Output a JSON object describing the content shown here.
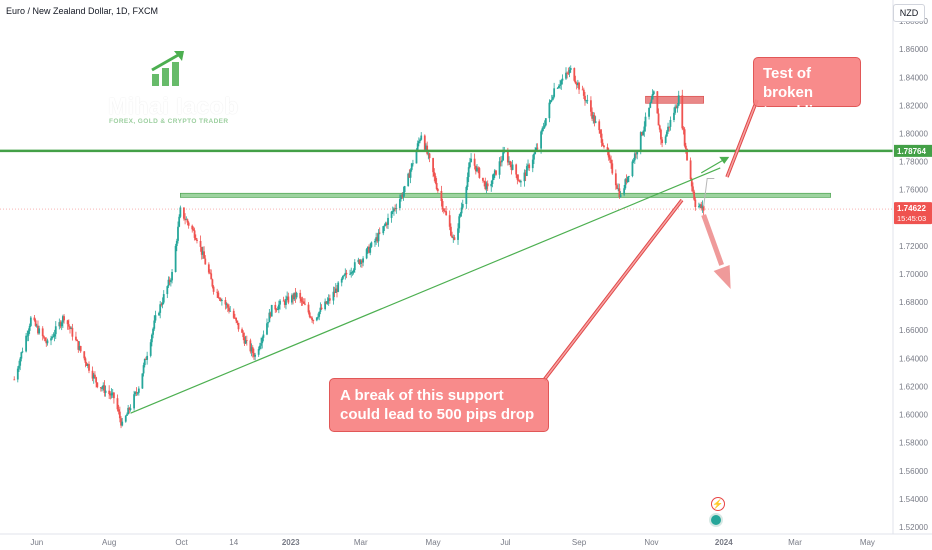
{
  "symbol_title": "Euro / New Zealand Dollar, 1D, FXCM",
  "currency": "NZD",
  "brand": {
    "name": "Mihai Iacob",
    "tagline": "FOREX, GOLD & CRYPTO TRADER"
  },
  "annotations": {
    "top_note": [
      "Test of broken",
      "trend line"
    ],
    "bottom_note": [
      "A break of this support",
      "could lead to 500 pips drop"
    ]
  },
  "icons": {
    "flash": "lightning-icon",
    "event": "event-dot-icon"
  },
  "colors": {
    "bull": "#26a69a",
    "bear": "#ef5350",
    "trend_line": "#4caf50",
    "resistance_zone": "#4caf50",
    "sell_zone": "#e57373",
    "price_label": "#ef5350",
    "level_label": "#43a047"
  },
  "chart_data": {
    "type": "candlestick",
    "title": "Euro / New Zealand Dollar, 1D, FXCM",
    "ylim": [
      1.515,
      1.895
    ],
    "y_ticks": [
      "1.88000",
      "1.86000",
      "1.84000",
      "1.82000",
      "1.80000",
      "1.78000",
      "1.76000",
      "1.74000",
      "1.72000",
      "1.70000",
      "1.68000",
      "1.66000",
      "1.64000",
      "1.62000",
      "1.60000",
      "1.58000",
      "1.56000",
      "1.54000",
      "1.52000"
    ],
    "x_ticks": [
      "Jun",
      "Aug",
      "Oct",
      "14",
      "2023",
      "Mar",
      "May",
      "Jul",
      "Sep",
      "Nov",
      "2024",
      "Mar",
      "May"
    ],
    "grid": false,
    "price_path": [
      [
        "2022-05-13",
        1.625
      ],
      [
        "2022-05-27",
        1.668
      ],
      [
        "2022-06-10",
        1.65
      ],
      [
        "2022-06-24",
        1.67
      ],
      [
        "2022-07-08",
        1.645
      ],
      [
        "2022-07-22",
        1.622
      ],
      [
        "2022-08-05",
        1.612
      ],
      [
        "2022-08-12",
        1.592
      ],
      [
        "2022-08-26",
        1.62
      ],
      [
        "2022-09-09",
        1.668
      ],
      [
        "2022-09-23",
        1.7
      ],
      [
        "2022-09-30",
        1.745
      ],
      [
        "2022-10-14",
        1.726
      ],
      [
        "2022-10-28",
        1.69
      ],
      [
        "2022-11-11",
        1.674
      ],
      [
        "2022-11-25",
        1.65
      ],
      [
        "2022-12-02",
        1.642
      ],
      [
        "2022-12-16",
        1.675
      ],
      [
        "2023-01-06",
        1.685
      ],
      [
        "2023-01-20",
        1.668
      ],
      [
        "2023-02-03",
        1.682
      ],
      [
        "2023-02-17",
        1.7
      ],
      [
        "2023-03-03",
        1.712
      ],
      [
        "2023-03-17",
        1.728
      ],
      [
        "2023-04-07",
        1.76
      ],
      [
        "2023-04-21",
        1.8
      ],
      [
        "2023-05-05",
        1.76
      ],
      [
        "2023-05-19",
        1.722
      ],
      [
        "2023-06-02",
        1.782
      ],
      [
        "2023-06-16",
        1.76
      ],
      [
        "2023-06-30",
        1.786
      ],
      [
        "2023-07-14",
        1.765
      ],
      [
        "2023-07-28",
        1.79
      ],
      [
        "2023-08-11",
        1.832
      ],
      [
        "2023-08-25",
        1.845
      ],
      [
        "2023-09-08",
        1.822
      ],
      [
        "2023-09-22",
        1.792
      ],
      [
        "2023-10-06",
        1.755
      ],
      [
        "2023-10-20",
        1.79
      ],
      [
        "2023-11-03",
        1.828
      ],
      [
        "2023-11-10",
        1.792
      ],
      [
        "2023-11-24",
        1.825
      ],
      [
        "2023-12-01",
        1.782
      ],
      [
        "2023-12-08",
        1.75
      ],
      [
        "2023-12-15",
        1.746
      ]
    ],
    "levels": [
      {
        "name": "Horizontal level",
        "value": 1.78764,
        "label": "1.78764"
      }
    ],
    "zones": [
      {
        "name": "Support zone",
        "from": "2022-09-30",
        "to": "2024-03-31",
        "y": [
          1.7545,
          1.7575
        ]
      },
      {
        "name": "Resistance box",
        "from": "2023-10-27",
        "to": "2023-12-15",
        "y": [
          1.8215,
          1.8265
        ]
      }
    ],
    "trend_line": {
      "from": [
        "2022-08-19",
        1.601
      ],
      "to": [
        "2023-12-29",
        1.7755
      ]
    },
    "last_price": {
      "value": "1.74622",
      "countdown": "15:45:03"
    }
  }
}
